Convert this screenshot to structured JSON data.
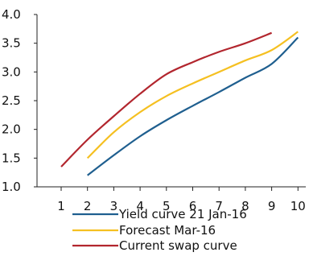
{
  "chart_data": {
    "type": "line",
    "title": "",
    "xlabel": "",
    "ylabel": "",
    "xlim": [
      1,
      10
    ],
    "ylim": [
      1.0,
      4.0
    ],
    "x_ticks": [
      "1",
      "2",
      "3",
      "4",
      "5",
      "6",
      "7",
      "8",
      "9",
      "10"
    ],
    "y_ticks": [
      "1.0",
      "1.5",
      "2.0",
      "2.5",
      "3.0",
      "3.5",
      "4.0"
    ],
    "grid": false,
    "legend_position": "bottom",
    "series": [
      {
        "name": "Yield curve 21 Jan-16",
        "color": "#1f5f8f",
        "x": [
          2,
          3,
          4,
          5,
          6,
          7,
          8,
          9,
          10
        ],
        "y": [
          1.2,
          1.55,
          1.88,
          2.16,
          2.41,
          2.65,
          2.9,
          3.14,
          3.6
        ]
      },
      {
        "name": "Forecast Mar-16",
        "color": "#f5c021",
        "x": [
          2,
          3,
          4,
          5,
          6,
          7,
          8,
          9,
          10
        ],
        "y": [
          1.5,
          1.95,
          2.3,
          2.58,
          2.8,
          3.0,
          3.2,
          3.38,
          3.7
        ]
      },
      {
        "name": "Current swap curve",
        "color": "#b2262e",
        "x": [
          1,
          2,
          3,
          4,
          5,
          6,
          7,
          8,
          9
        ],
        "y": [
          1.35,
          1.82,
          2.23,
          2.62,
          2.96,
          3.17,
          3.35,
          3.5,
          3.68
        ]
      }
    ]
  }
}
